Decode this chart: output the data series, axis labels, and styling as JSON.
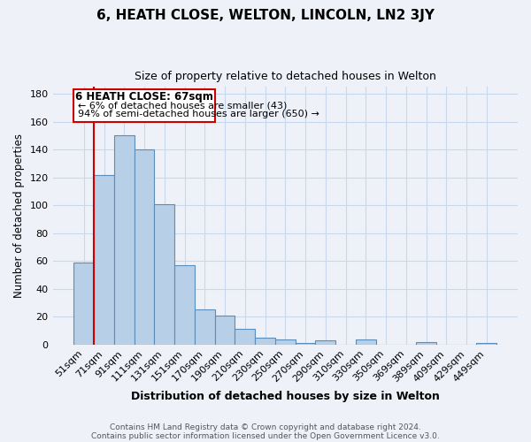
{
  "title": "6, HEATH CLOSE, WELTON, LINCOLN, LN2 3JY",
  "subtitle": "Size of property relative to detached houses in Welton",
  "xlabel": "Distribution of detached houses by size in Welton",
  "ylabel": "Number of detached properties",
  "bar_labels": [
    "51sqm",
    "71sqm",
    "91sqm",
    "111sqm",
    "131sqm",
    "151sqm",
    "170sqm",
    "190sqm",
    "210sqm",
    "230sqm",
    "250sqm",
    "270sqm",
    "290sqm",
    "310sqm",
    "330sqm",
    "350sqm",
    "369sqm",
    "389sqm",
    "409sqm",
    "429sqm",
    "449sqm"
  ],
  "bar_values": [
    59,
    122,
    150,
    140,
    101,
    57,
    25,
    21,
    11,
    5,
    4,
    1,
    3,
    0,
    4,
    0,
    0,
    2,
    0,
    0,
    1
  ],
  "bar_color": "#b8cfe8",
  "bar_edge_color": "#5b8db8",
  "ylim": [
    0,
    185
  ],
  "yticks": [
    0,
    20,
    40,
    60,
    80,
    100,
    120,
    140,
    160,
    180
  ],
  "annotation_title": "6 HEATH CLOSE: 67sqm",
  "annotation_line1": "← 6% of detached houses are smaller (43)",
  "annotation_line2": "94% of semi-detached houses are larger (650) →",
  "footer_line1": "Contains HM Land Registry data © Crown copyright and database right 2024.",
  "footer_line2": "Contains public sector information licensed under the Open Government Licence v3.0.",
  "background_color": "#eef2f8",
  "grid_color": "#c8d8ec",
  "red_line_color": "#cc0000",
  "annotation_box_edge": "#cc0000"
}
